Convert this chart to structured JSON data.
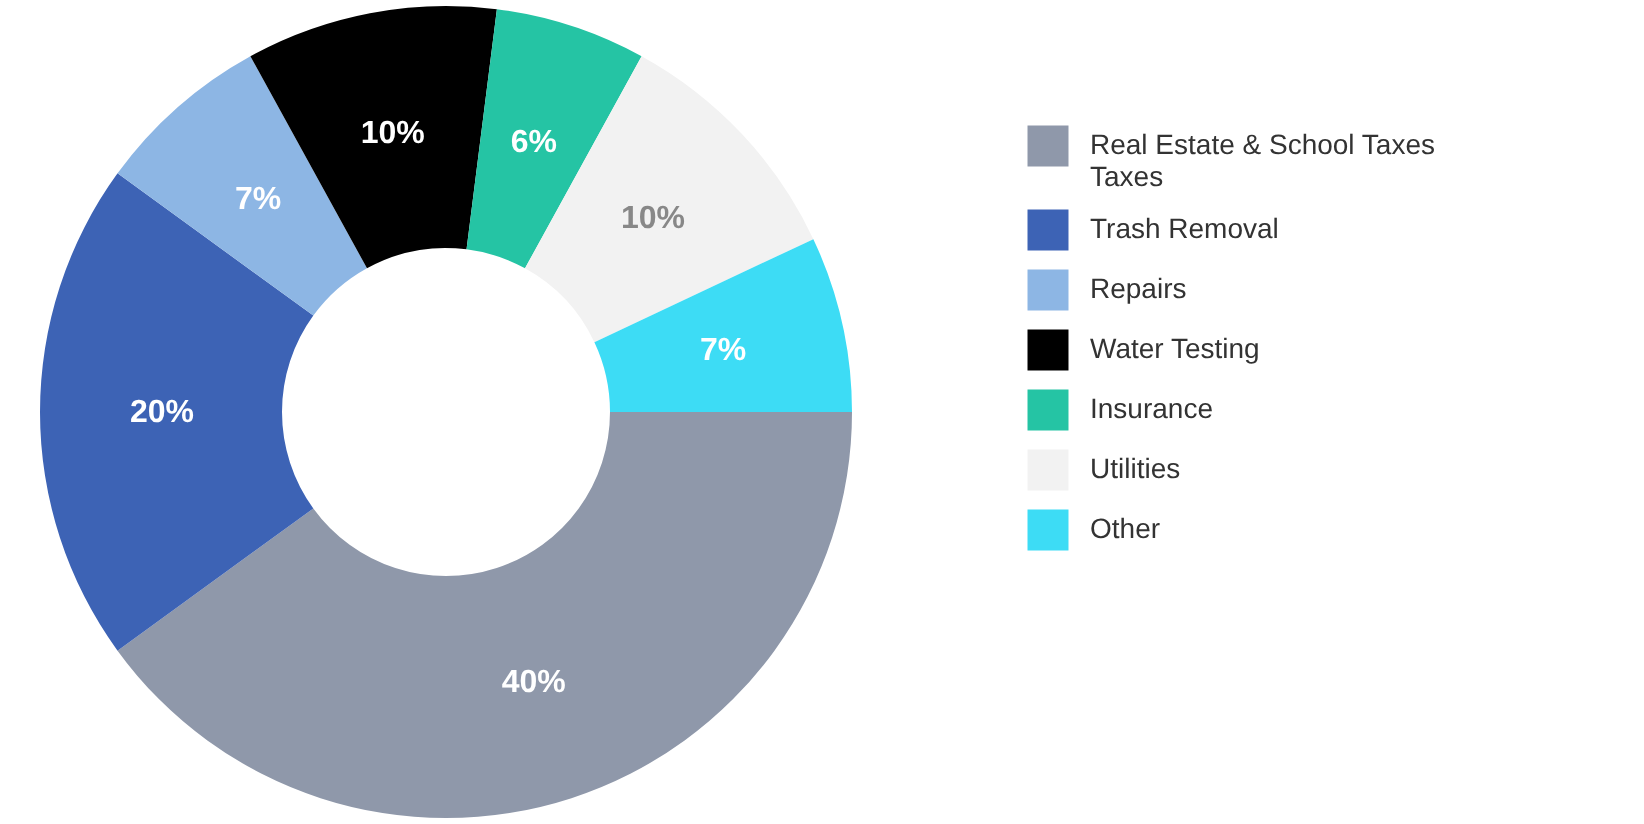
{
  "chart_data": {
    "type": "donut",
    "categories": [
      "Real Estate & School Taxes\nTaxes",
      "Trash Removal",
      "Repairs",
      "Water Testing",
      "Insurance",
      "Utilities",
      "Other"
    ],
    "values": [
      40,
      20,
      7,
      10,
      6,
      10,
      7
    ],
    "colors": [
      "#8f98aa",
      "#3d63b5",
      "#8db6e4",
      "#000000",
      "#25c4a4",
      "#f2f2f2",
      "#3ddcf5"
    ],
    "value_labels": [
      "40%",
      "20%",
      "7%",
      "10%",
      "6%",
      "10%",
      "7%"
    ],
    "legend": "right"
  }
}
